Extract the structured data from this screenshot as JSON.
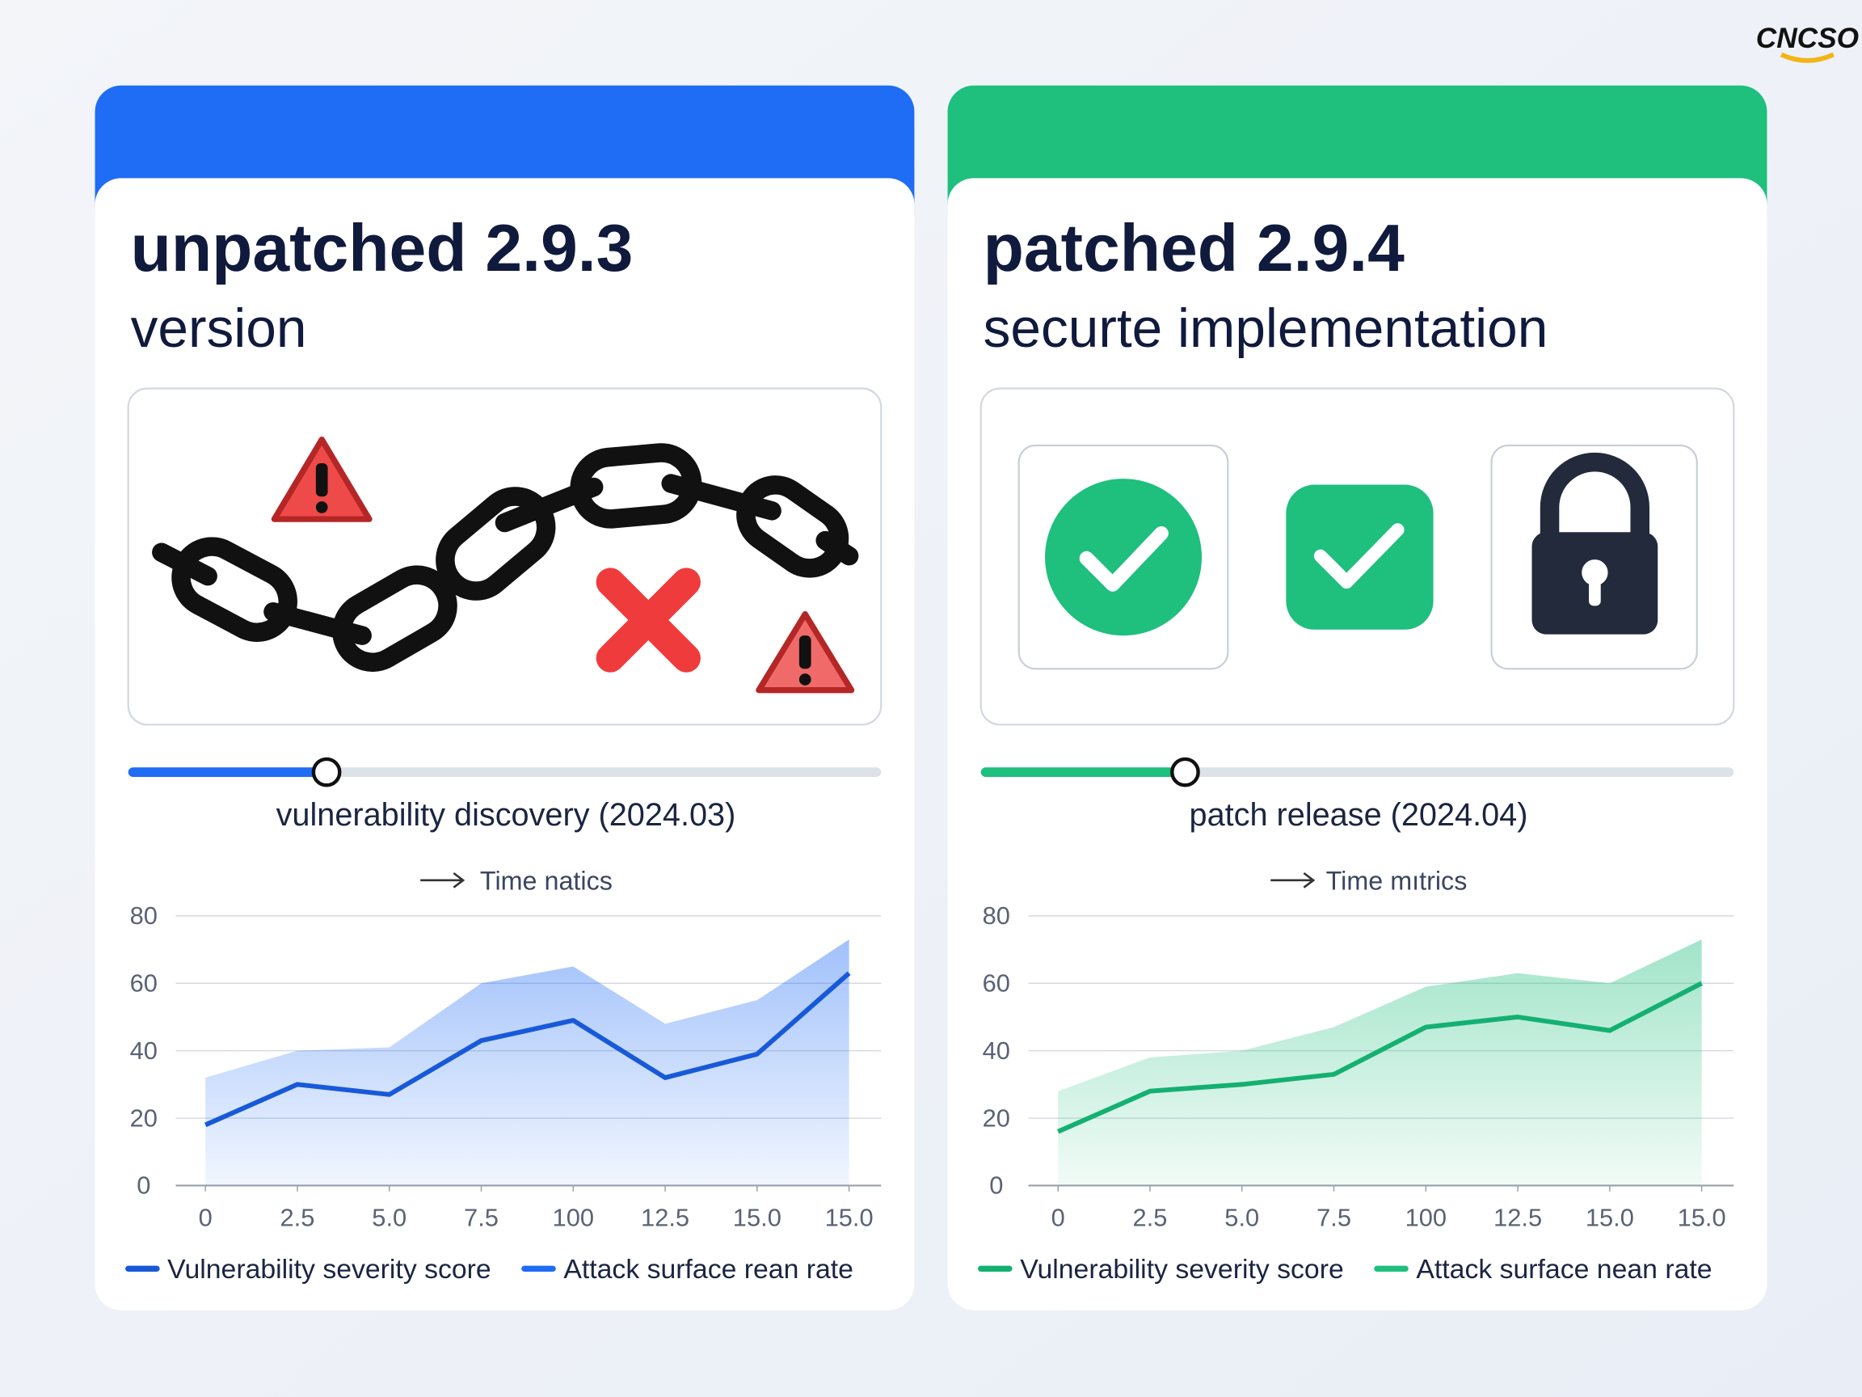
{
  "logo": "CNCSO",
  "panels": [
    {
      "title": "unpatched 2.9.3",
      "subtitle": "version",
      "timeline": "vulnerability discovery (2024.03)",
      "color": "#1f6cf5"
    },
    {
      "title": "patched 2.9.4",
      "subtitle": "securte implementation",
      "timeline": "patch release (2024.04)",
      "color": "#1fbf7e"
    }
  ],
  "chart_data": [
    {
      "type": "line",
      "x_label": "Time natics",
      "categories": [
        "0",
        "2.5",
        "5.0",
        "7.5",
        "100",
        "12.5",
        "15.0",
        "15.0"
      ],
      "series": [
        {
          "name": "Vulnerability severity score",
          "type": "line",
          "color": "#1759d8",
          "values": [
            18,
            30,
            27,
            43,
            49,
            32,
            39,
            63
          ]
        },
        {
          "name": "Attack surface rean rate",
          "type": "area",
          "color": "#1f6cf5",
          "values": [
            32,
            40,
            41,
            60,
            65,
            48,
            55,
            73
          ]
        }
      ],
      "ylim": [
        0,
        80
      ],
      "yticks": [
        0,
        20,
        40,
        60,
        80
      ],
      "grid": true
    },
    {
      "type": "line",
      "x_label": "Time mıtrics",
      "categories": [
        "0",
        "2.5",
        "5.0",
        "7.5",
        "100",
        "12.5",
        "15.0",
        "15.0"
      ],
      "series": [
        {
          "name": "Vulnerability severity score",
          "type": "line",
          "color": "#14b072",
          "values": [
            16,
            28,
            30,
            33,
            47,
            50,
            46,
            60
          ]
        },
        {
          "name": "Attack surface nean rate",
          "type": "area",
          "color": "#1fbf7e",
          "values": [
            28,
            38,
            40,
            47,
            59,
            63,
            60,
            73
          ]
        }
      ],
      "ylim": [
        0,
        80
      ],
      "yticks": [
        0,
        20,
        40,
        60,
        80
      ],
      "grid": true
    }
  ]
}
